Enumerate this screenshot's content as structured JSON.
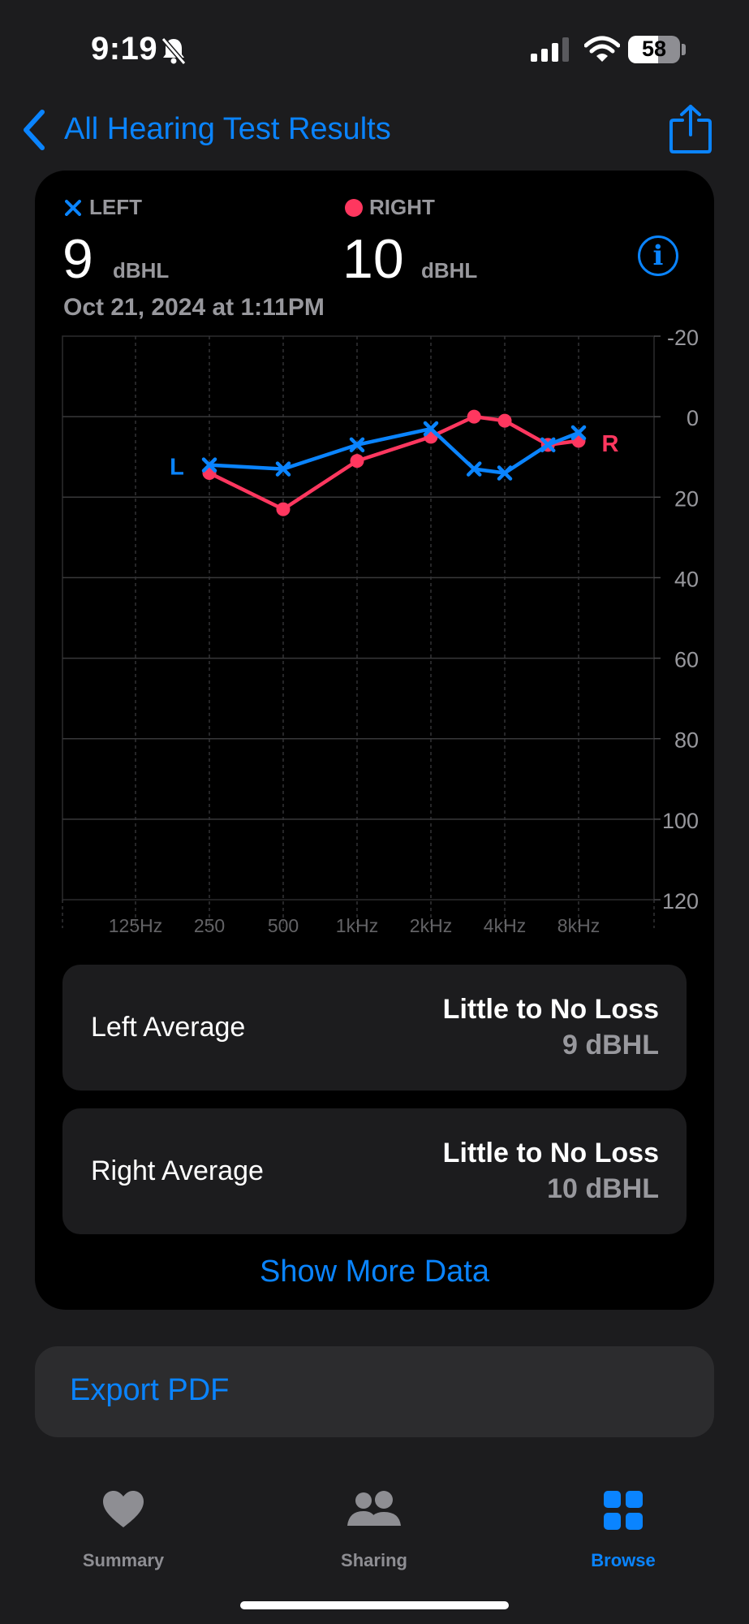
{
  "status_bar": {
    "time": "9:19",
    "battery": "58"
  },
  "nav": {
    "back_label": "All Hearing Test Results"
  },
  "summary": {
    "left_label": "LEFT",
    "left_value": "9",
    "left_unit": "dBHL",
    "right_label": "RIGHT",
    "right_value": "10",
    "right_unit": "dBHL",
    "date": "Oct 21, 2024 at 1:11PM",
    "info_glyph": "i"
  },
  "chart_data": {
    "type": "line",
    "title": "",
    "x_tick_labels": [
      "125Hz",
      "250",
      "500",
      "1kHz",
      "2kHz",
      "4kHz",
      "8kHz"
    ],
    "y_tick_labels": [
      "-20",
      "0",
      "20",
      "40",
      "60",
      "80",
      "100",
      "120"
    ],
    "ylim": [
      -20,
      120
    ],
    "y_inverted": true,
    "grid": true,
    "series": [
      {
        "name": "L",
        "ear": "left",
        "color": "#0a84ff",
        "marker": "x",
        "points": [
          {
            "x": "250",
            "y": 12
          },
          {
            "x": "500",
            "y": 13
          },
          {
            "x": "1kHz",
            "y": 7
          },
          {
            "x": "2kHz",
            "y": 3
          },
          {
            "x": "3kHz",
            "y": 13
          },
          {
            "x": "4kHz",
            "y": 14
          },
          {
            "x": "6kHz",
            "y": 7
          },
          {
            "x": "8kHz",
            "y": 4
          }
        ]
      },
      {
        "name": "R",
        "ear": "right",
        "color": "#ff375f",
        "marker": "circle",
        "points": [
          {
            "x": "250",
            "y": 14
          },
          {
            "x": "500",
            "y": 23
          },
          {
            "x": "1kHz",
            "y": 11
          },
          {
            "x": "2kHz",
            "y": 5
          },
          {
            "x": "3kHz",
            "y": 0
          },
          {
            "x": "4kHz",
            "y": 1
          },
          {
            "x": "6kHz",
            "y": 7
          },
          {
            "x": "8kHz",
            "y": 6
          }
        ]
      }
    ]
  },
  "averages": [
    {
      "label": "Left Average",
      "status": "Little to No Loss",
      "value": "9 dBHL"
    },
    {
      "label": "Right Average",
      "status": "Little to No Loss",
      "value": "10 dBHL"
    }
  ],
  "show_more_label": "Show More Data",
  "export_label": "Export PDF",
  "tabs": [
    {
      "label": "Summary",
      "icon": "heart-icon",
      "active": false
    },
    {
      "label": "Sharing",
      "icon": "people-icon",
      "active": false
    },
    {
      "label": "Browse",
      "icon": "grid-icon",
      "active": true
    }
  ],
  "colors": {
    "accent": "#0a84ff",
    "left": "#0a84ff",
    "right": "#ff375f",
    "inactive": "#8e8e93"
  }
}
